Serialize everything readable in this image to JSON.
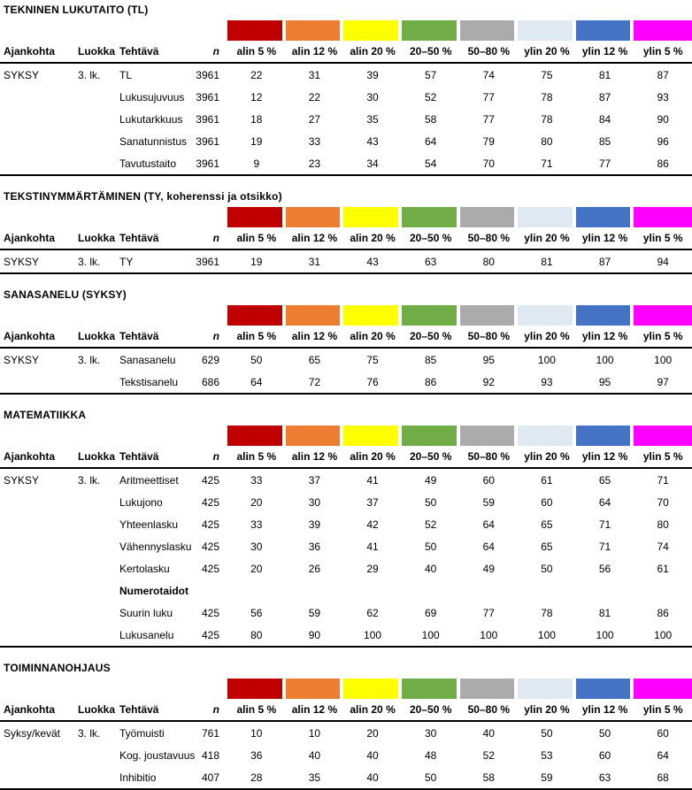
{
  "columns": {
    "ajankohta": "Ajankohta",
    "luokka": "Luokka",
    "tehtava": "Tehtävä",
    "n": "n"
  },
  "band": [
    {
      "label": "alin 5 %",
      "color": "#C00000"
    },
    {
      "label": "alin 12 %",
      "color": "#ED7D31"
    },
    {
      "label": "alin 20 %",
      "color": "#FFFF00"
    },
    {
      "label": "20–50 %",
      "color": "#70AD47"
    },
    {
      "label": "50–80 %",
      "color": "#ABABAB"
    },
    {
      "label": "ylin 20 %",
      "color": "#DEE9F1"
    },
    {
      "label": "ylin 12 %",
      "color": "#4472C4"
    },
    {
      "label": "ylin 5 %",
      "color": "#FF00FF"
    }
  ],
  "tables": [
    {
      "title": "TEKNINEN LUKUTAITO (TL)",
      "rows": [
        {
          "ajankohta": "SYKSY",
          "luokka": "3. lk.",
          "tehtava": "TL",
          "n": "3961",
          "values": [
            "22",
            "31",
            "39",
            "57",
            "74",
            "75",
            "81",
            "87"
          ]
        },
        {
          "ajankohta": "",
          "luokka": "",
          "tehtava": "Lukusujuvuus",
          "n": "3961",
          "values": [
            "12",
            "22",
            "30",
            "52",
            "77",
            "78",
            "87",
            "93"
          ]
        },
        {
          "ajankohta": "",
          "luokka": "",
          "tehtava": "Lukutarkkuus",
          "n": "3961",
          "values": [
            "18",
            "27",
            "35",
            "58",
            "77",
            "78",
            "84",
            "90"
          ]
        },
        {
          "ajankohta": "",
          "luokka": "",
          "tehtava": "Sanatunnistus",
          "n": "3961",
          "values": [
            "19",
            "33",
            "43",
            "64",
            "79",
            "80",
            "85",
            "96"
          ]
        },
        {
          "ajankohta": "",
          "luokka": "",
          "tehtava": "Tavutustaito",
          "n": "3961",
          "values": [
            "9",
            "23",
            "34",
            "54",
            "70",
            "71",
            "77",
            "86"
          ]
        }
      ]
    },
    {
      "title": "TEKSTINYMMÄRTÄMINEN (TY, koherenssi ja otsikko)",
      "rows": [
        {
          "ajankohta": "SYKSY",
          "luokka": "3. lk.",
          "tehtava": "TY",
          "n": "3961",
          "values": [
            "19",
            "31",
            "43",
            "63",
            "80",
            "81",
            "87",
            "94"
          ]
        }
      ]
    },
    {
      "title": "SANASANELU (SYKSY)",
      "rows": [
        {
          "ajankohta": "SYKSY",
          "luokka": "3. lk.",
          "tehtava": "Sanasanelu",
          "n": "629",
          "values": [
            "50",
            "65",
            "75",
            "85",
            "95",
            "100",
            "100",
            "100"
          ]
        },
        {
          "ajankohta": "",
          "luokka": "",
          "tehtava": "Tekstisanelu",
          "n": "686",
          "values": [
            "64",
            "72",
            "76",
            "86",
            "92",
            "93",
            "95",
            "97"
          ]
        }
      ]
    },
    {
      "title": "MATEMATIIKKA",
      "rows": [
        {
          "ajankohta": "SYKSY",
          "luokka": "3. lk.",
          "tehtava": "Aritmeettiset",
          "n": "425",
          "values": [
            "33",
            "37",
            "41",
            "49",
            "60",
            "61",
            "65",
            "71"
          ]
        },
        {
          "ajankohta": "",
          "luokka": "",
          "tehtava": "Lukujono",
          "n": "425",
          "values": [
            "20",
            "30",
            "37",
            "50",
            "59",
            "60",
            "64",
            "70"
          ]
        },
        {
          "ajankohta": "",
          "luokka": "",
          "tehtava": "Yhteenlasku",
          "n": "425",
          "values": [
            "33",
            "39",
            "42",
            "52",
            "64",
            "65",
            "71",
            "80"
          ]
        },
        {
          "ajankohta": "",
          "luokka": "",
          "tehtava": "Vähennyslasku",
          "n": "425",
          "values": [
            "30",
            "36",
            "41",
            "50",
            "64",
            "65",
            "71",
            "74"
          ]
        },
        {
          "ajankohta": "",
          "luokka": "",
          "tehtava": "Kertolasku",
          "n": "425",
          "values": [
            "20",
            "26",
            "29",
            "40",
            "49",
            "50",
            "56",
            "61"
          ]
        },
        {
          "ajankohta": "",
          "luokka": "",
          "tehtava": "Numerotaidot",
          "n": "",
          "emphasis": "bold",
          "values": [
            "",
            "",
            "",
            "",
            "",
            "",
            "",
            ""
          ]
        },
        {
          "ajankohta": "",
          "luokka": "",
          "tehtava": "Suurin luku",
          "n": "425",
          "values": [
            "56",
            "59",
            "62",
            "69",
            "77",
            "78",
            "81",
            "86"
          ]
        },
        {
          "ajankohta": "",
          "luokka": "",
          "tehtava": "Lukusanelu",
          "n": "425",
          "values": [
            "80",
            "90",
            "100",
            "100",
            "100",
            "100",
            "100",
            "100"
          ]
        }
      ]
    },
    {
      "title": "TOIMINNANOHJAUS",
      "rows": [
        {
          "ajankohta": "Syksy/kevät",
          "luokka": "3. lk.",
          "tehtava": "Työmuisti",
          "n": "761",
          "values": [
            "10",
            "10",
            "20",
            "30",
            "40",
            "50",
            "50",
            "60"
          ]
        },
        {
          "ajankohta": "",
          "luokka": "",
          "tehtava": "Kog. joustavuus",
          "n": "418",
          "values": [
            "36",
            "40",
            "40",
            "48",
            "52",
            "53",
            "60",
            "64"
          ]
        },
        {
          "ajankohta": "",
          "luokka": "",
          "tehtava": "Inhibitio",
          "n": "407",
          "values": [
            "28",
            "35",
            "40",
            "50",
            "58",
            "59",
            "63",
            "68"
          ]
        }
      ]
    }
  ]
}
